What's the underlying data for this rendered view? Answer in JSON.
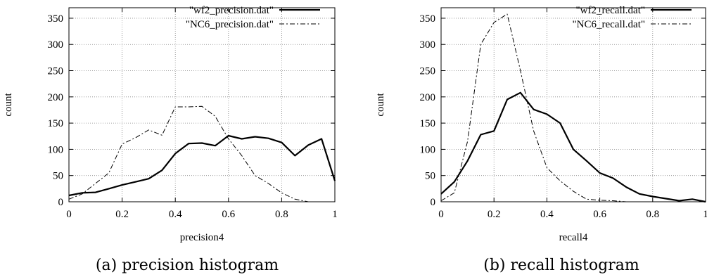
{
  "chart_data": [
    {
      "type": "line",
      "caption": "(a) precision histogram",
      "xlabel": "precision4",
      "ylabel": "count",
      "xlim": [
        0,
        1
      ],
      "ylim": [
        0,
        370
      ],
      "xticks": [
        0,
        0.2,
        0.4,
        0.6,
        0.8,
        1
      ],
      "xtick_labels": [
        "0",
        "0.2",
        "0.4",
        "0.6",
        "0.8",
        "1"
      ],
      "yticks": [
        0,
        50,
        100,
        150,
        200,
        250,
        300,
        350
      ],
      "ytick_labels": [
        "0",
        "50",
        "100",
        "150",
        "200",
        "250",
        "300",
        "350"
      ],
      "grid": true,
      "legend": "top-right",
      "series": [
        {
          "name": "\"wf2_precision.dat\"",
          "style": "solid",
          "color": "#000000",
          "x": [
            0,
            0.05,
            0.1,
            0.15,
            0.2,
            0.25,
            0.3,
            0.35,
            0.4,
            0.45,
            0.5,
            0.55,
            0.6,
            0.65,
            0.7,
            0.75,
            0.8,
            0.85,
            0.9,
            0.95,
            1.0
          ],
          "y": [
            12,
            17,
            18,
            25,
            32,
            38,
            44,
            60,
            92,
            111,
            112,
            107,
            126,
            120,
            124,
            121,
            113,
            88,
            108,
            120,
            40
          ]
        },
        {
          "name": "\"NC6_precision.dat\"",
          "style": "dashdot",
          "color": "#000000",
          "x": [
            0,
            0.05,
            0.1,
            0.15,
            0.2,
            0.25,
            0.3,
            0.35,
            0.4,
            0.45,
            0.5,
            0.55,
            0.6,
            0.65,
            0.7,
            0.75,
            0.8,
            0.85,
            0.9,
            0.95,
            1.0
          ],
          "y": [
            5,
            15,
            35,
            55,
            110,
            122,
            137,
            127,
            181,
            181,
            182,
            163,
            120,
            88,
            50,
            35,
            17,
            5,
            0,
            0,
            0
          ]
        }
      ]
    },
    {
      "type": "line",
      "caption": "(b) recall histogram",
      "xlabel": "recall4",
      "ylabel": "count",
      "xlim": [
        0,
        1
      ],
      "ylim": [
        0,
        370
      ],
      "xticks": [
        0,
        0.2,
        0.4,
        0.6,
        0.8,
        1
      ],
      "xtick_labels": [
        "0",
        "0.2",
        "0.4",
        "0.6",
        "0.8",
        "1"
      ],
      "yticks": [
        0,
        50,
        100,
        150,
        200,
        250,
        300,
        350
      ],
      "ytick_labels": [
        "0",
        "50",
        "100",
        "150",
        "200",
        "250",
        "300",
        "350"
      ],
      "grid": true,
      "legend": "top-right",
      "series": [
        {
          "name": "\"wf2_recall.dat\"",
          "style": "solid",
          "color": "#000000",
          "x": [
            0,
            0.05,
            0.1,
            0.15,
            0.2,
            0.25,
            0.3,
            0.35,
            0.4,
            0.45,
            0.5,
            0.55,
            0.6,
            0.65,
            0.7,
            0.75,
            0.8,
            0.85,
            0.9,
            0.95,
            1.0
          ],
          "y": [
            15,
            38,
            78,
            128,
            135,
            195,
            208,
            176,
            167,
            150,
            100,
            78,
            55,
            45,
            28,
            15,
            10,
            6,
            2,
            5,
            0
          ]
        },
        {
          "name": "\"NC6_recall.dat\"",
          "style": "dashdot",
          "color": "#000000",
          "x": [
            0,
            0.05,
            0.1,
            0.15,
            0.2,
            0.25,
            0.3,
            0.35,
            0.4,
            0.45,
            0.5,
            0.55,
            0.6,
            0.65,
            0.7,
            0.75,
            0.8,
            0.85,
            0.9,
            0.95,
            1.0
          ],
          "y": [
            2,
            17,
            115,
            300,
            342,
            358,
            250,
            135,
            65,
            40,
            20,
            5,
            3,
            2,
            0,
            0,
            0,
            0,
            0,
            0,
            0
          ]
        }
      ]
    }
  ]
}
